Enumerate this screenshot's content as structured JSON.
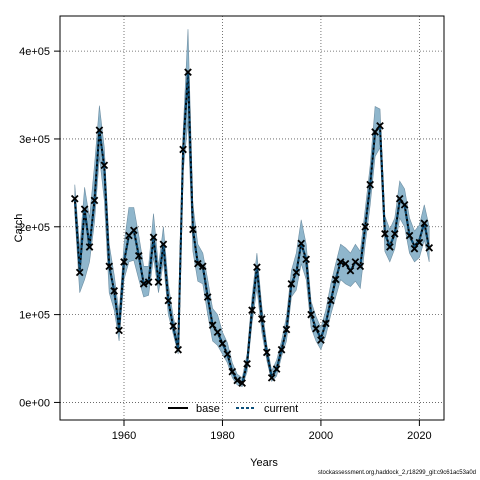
{
  "chart_data": {
    "type": "line",
    "xlabel": "Years",
    "ylabel": "Catch",
    "xlim": [
      1947,
      2025
    ],
    "ylim": [
      -20000,
      440000
    ],
    "x_ticks": [
      1960,
      1980,
      2000,
      2020
    ],
    "x_tick_labels": [
      "1960",
      "1980",
      "2000",
      "2020"
    ],
    "y_ticks": [
      0,
      100000,
      200000,
      300000,
      400000
    ],
    "y_tick_labels": [
      "0e+00",
      "1e+05",
      "2e+05",
      "3e+05",
      "4e+05"
    ],
    "grid": true,
    "legend": {
      "position": "bottom-center",
      "entries": [
        "base",
        "current"
      ]
    },
    "colors": {
      "band": "#8fb6cc",
      "band_edge": "#6f8fa3",
      "base": "#000000",
      "current": "#0b4f7a",
      "observed": "#000000"
    },
    "years": [
      1950,
      1951,
      1952,
      1953,
      1954,
      1955,
      1956,
      1957,
      1958,
      1959,
      1960,
      1961,
      1962,
      1963,
      1964,
      1965,
      1966,
      1967,
      1968,
      1969,
      1970,
      1971,
      1972,
      1973,
      1974,
      1975,
      1976,
      1977,
      1978,
      1979,
      1980,
      1981,
      1982,
      1983,
      1984,
      1985,
      1986,
      1987,
      1988,
      1989,
      1990,
      1991,
      1992,
      1993,
      1994,
      1995,
      1996,
      1997,
      1998,
      1999,
      2000,
      2001,
      2002,
      2003,
      2004,
      2005,
      2006,
      2007,
      2008,
      2009,
      2010,
      2011,
      2012,
      2013,
      2014,
      2015,
      2016,
      2017,
      2018,
      2019,
      2020,
      2021,
      2022
    ],
    "series": [
      {
        "name": "base",
        "values": [
          232000,
          150000,
          220000,
          177000,
          230000,
          310000,
          268000,
          155000,
          127000,
          84000,
          160000,
          190000,
          196000,
          167000,
          135000,
          137000,
          188000,
          137000,
          180000,
          116000,
          86000,
          61000,
          288000,
          375000,
          197000,
          158000,
          155000,
          120000,
          88000,
          80000,
          67000,
          55000,
          35000,
          25000,
          22000,
          44000,
          105000,
          154000,
          95000,
          57000,
          29000,
          38000,
          60000,
          83000,
          135000,
          148000,
          181000,
          163000,
          100000,
          84000,
          73000,
          90000,
          116000,
          140000,
          160000,
          158000,
          150000,
          160000,
          155000,
          200000,
          248000,
          308000,
          315000,
          192000,
          178000,
          192000,
          230000,
          225000,
          190000,
          178000,
          185000,
          205000,
          175000
        ]
      },
      {
        "name": "current",
        "values": [
          232000,
          150000,
          220000,
          177000,
          230000,
          310000,
          268000,
          155000,
          127000,
          84000,
          160000,
          190000,
          196000,
          167000,
          135000,
          137000,
          188000,
          137000,
          180000,
          116000,
          86000,
          61000,
          288000,
          375000,
          197000,
          158000,
          155000,
          120000,
          88000,
          80000,
          67000,
          55000,
          35000,
          25000,
          22000,
          44000,
          105000,
          154000,
          95000,
          57000,
          29000,
          38000,
          60000,
          83000,
          135000,
          148000,
          181000,
          163000,
          100000,
          84000,
          73000,
          90000,
          116000,
          140000,
          160000,
          158000,
          150000,
          160000,
          155000,
          200000,
          248000,
          308000,
          315000,
          192000,
          178000,
          192000,
          230000,
          225000,
          190000,
          178000,
          185000,
          205000,
          175000
        ]
      },
      {
        "name": "observed",
        "values": [
          232000,
          148000,
          220000,
          177000,
          230000,
          310000,
          270000,
          155000,
          127000,
          82000,
          160000,
          190000,
          196000,
          167000,
          135000,
          137000,
          188000,
          137000,
          180000,
          116000,
          87000,
          60000,
          288000,
          376000,
          197000,
          158000,
          155000,
          120000,
          88000,
          80000,
          67000,
          55000,
          35000,
          25000,
          22000,
          44000,
          105000,
          154000,
          95000,
          57000,
          28000,
          38000,
          60000,
          83000,
          135000,
          148000,
          181000,
          163000,
          100000,
          84000,
          71000,
          90000,
          116000,
          140000,
          160000,
          158000,
          150000,
          160000,
          155000,
          200000,
          248000,
          308000,
          315000,
          192000,
          177000,
          192000,
          232000,
          225000,
          190000,
          175000,
          182000,
          204000,
          176000
        ]
      }
    ],
    "band_lower": [
      215000,
      125000,
      140000,
      160000,
      205000,
      280000,
      230000,
      125000,
      105000,
      70000,
      140000,
      160000,
      162000,
      140000,
      120000,
      122000,
      165000,
      125000,
      160000,
      100000,
      78000,
      55000,
      262000,
      320000,
      172000,
      138000,
      135000,
      100000,
      70000,
      65000,
      55000,
      45000,
      28000,
      20000,
      18000,
      35000,
      90000,
      130000,
      80000,
      48000,
      24000,
      30000,
      52000,
      70000,
      120000,
      128000,
      158000,
      140000,
      85000,
      70000,
      60000,
      76000,
      100000,
      120000,
      140000,
      135000,
      132000,
      138000,
      130000,
      180000,
      225000,
      280000,
      290000,
      172000,
      160000,
      175000,
      210000,
      200000,
      170000,
      160000,
      165000,
      185000,
      160000
    ],
    "band_upper": [
      248000,
      175000,
      245000,
      210000,
      270000,
      338000,
      290000,
      180000,
      145000,
      102000,
      180000,
      222000,
      222000,
      190000,
      155000,
      155000,
      215000,
      155000,
      200000,
      135000,
      98000,
      72000,
      308000,
      425000,
      225000,
      180000,
      170000,
      140000,
      107000,
      100000,
      80000,
      68000,
      45000,
      32000,
      28000,
      55000,
      120000,
      170000,
      110000,
      66000,
      36000,
      48000,
      70000,
      98000,
      150000,
      170000,
      208000,
      180000,
      115000,
      98000,
      85000,
      105000,
      135000,
      158000,
      180000,
      176000,
      170000,
      180000,
      172000,
      220000,
      270000,
      337000,
      334000,
      212000,
      197000,
      210000,
      252000,
      243000,
      210000,
      195000,
      202000,
      225000,
      200000
    ]
  },
  "footer": "stockassessment.org,haddock_2,r18299_git:c9c61ac53a0d"
}
